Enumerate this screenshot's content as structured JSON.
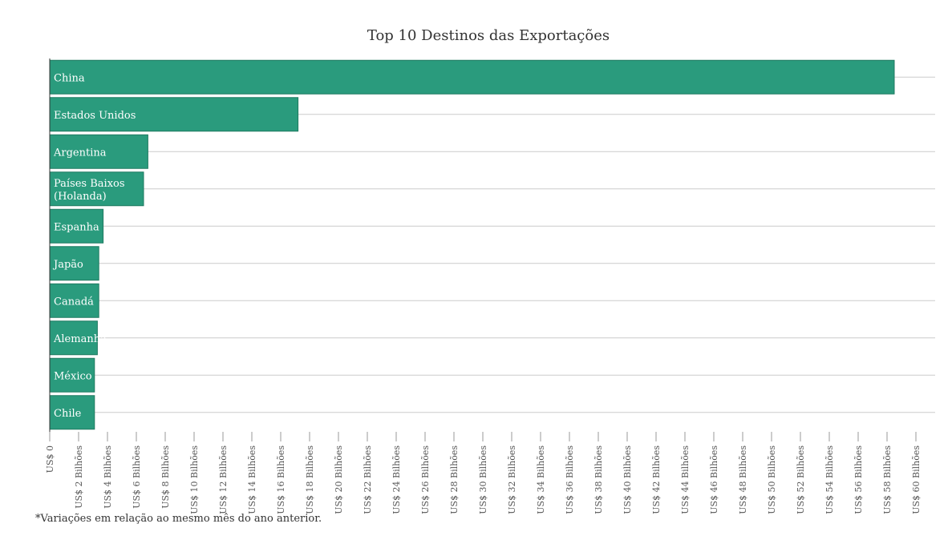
{
  "chart_data": {
    "type": "bar",
    "orientation": "horizontal",
    "title": "Top 10 Destinos das Exportações",
    "xlabel": "",
    "ylabel": "",
    "categories": [
      "China",
      "Estados Unidos",
      "Argentina",
      "Países Baixos (Holanda)",
      "Espanha",
      "Japão",
      "Canadá",
      "Alemanha",
      "México",
      "Chile"
    ],
    "category_lines": [
      [
        "China"
      ],
      [
        "Estados Unidos"
      ],
      [
        "Argentina"
      ],
      [
        "Países Baixos",
        "(Holanda)"
      ],
      [
        "Espanha"
      ],
      [
        "Japão"
      ],
      [
        "Canadá"
      ],
      [
        "Alemanha"
      ],
      [
        "México"
      ],
      [
        "Chile"
      ]
    ],
    "values": [
      58.5,
      17.2,
      6.8,
      6.5,
      3.7,
      3.4,
      3.4,
      3.3,
      3.1,
      3.1
    ],
    "value_unit": "US$ Bilhões",
    "xlim": [
      0,
      61
    ],
    "x_ticks": [
      0,
      2,
      4,
      6,
      8,
      10,
      12,
      14,
      16,
      18,
      20,
      22,
      24,
      26,
      28,
      30,
      32,
      34,
      36,
      38,
      40,
      42,
      44,
      46,
      48,
      50,
      52,
      54,
      56,
      58,
      60
    ],
    "x_tick_labels": [
      "US$ 0",
      "US$ 2 Bilhões",
      "US$ 4 Bilhões",
      "US$ 6 Bilhões",
      "US$ 8 Bilhões",
      "US$ 10 Bilhões",
      "US$ 12 Bilhões",
      "US$ 14 Bilhões",
      "US$ 16 Bilhões",
      "US$ 18 Bilhões",
      "US$ 20 Bilhões",
      "US$ 22 Bilhões",
      "US$ 24 Bilhões",
      "US$ 26 Bilhões",
      "US$ 28 Bilhões",
      "US$ 30 Bilhões",
      "US$ 32 Bilhões",
      "US$ 34 Bilhões",
      "US$ 36 Bilhões",
      "US$ 38 Bilhões",
      "US$ 40 Bilhões",
      "US$ 42 Bilhões",
      "US$ 44 Bilhões",
      "US$ 46 Bilhões",
      "US$ 48 Bilhões",
      "US$ 50 Bilhões",
      "US$ 52 Bilhões",
      "US$ 54 Bilhões",
      "US$ 56 Bilhões",
      "US$ 58 Bilhões",
      "US$ 60 Bilhões"
    ],
    "grid": true,
    "legend": "none",
    "bar_color": "#2a9b7d"
  },
  "footnote": "*Variações em relação ao mesmo mês do ano anterior."
}
